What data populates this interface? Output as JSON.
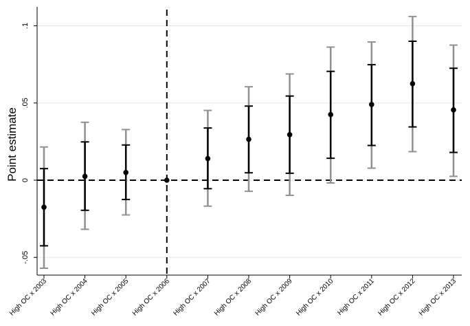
{
  "chart_data": {
    "type": "scatter",
    "ylabel": "Point estimate",
    "xlabel": "",
    "ylim": [
      -0.062,
      0.11
    ],
    "yticks": [
      -0.05,
      0,
      0.05,
      0.1
    ],
    "ytick_labels": [
      "-.05",
      "0",
      ".05",
      ".1"
    ],
    "grid": true,
    "reference_lines": {
      "horizontal_y": 0,
      "vertical_category": "High OC x 2006"
    },
    "categories": [
      "High OC x 2003",
      "High OC x 2004",
      "High OC x 2005",
      "High OC x 2006",
      "High OC x 2007",
      "High OC x 2008",
      "High OC x 2009",
      "High OC x 2010",
      "High OC x 2011",
      "High OC x 2012",
      "High OC x 2013"
    ],
    "point_estimate": [
      -0.0175,
      0.0025,
      0.005,
      0.0,
      0.014,
      0.0265,
      0.0295,
      0.0425,
      0.049,
      0.0625,
      0.0455
    ],
    "ci_inner_low": [
      -0.0425,
      -0.0195,
      -0.0125,
      0.0,
      -0.0055,
      0.0048,
      0.0045,
      0.0142,
      0.0225,
      0.0345,
      0.018
    ],
    "ci_inner_high": [
      0.0075,
      0.0248,
      0.0228,
      0.0,
      0.0338,
      0.048,
      0.0545,
      0.0705,
      0.0748,
      0.09,
      0.0725
    ],
    "ci_outer_low": [
      -0.057,
      -0.0318,
      -0.0225,
      0.0,
      -0.0168,
      -0.0072,
      -0.0098,
      -0.0018,
      0.0078,
      0.0185,
      0.0025
    ],
    "ci_outer_high": [
      0.0215,
      0.0375,
      0.0328,
      0.0,
      0.0452,
      0.0605,
      0.0688,
      0.0862,
      0.0895,
      0.106,
      0.0875
    ],
    "colors": {
      "estimate": "#000000",
      "outer_ci": "#909090",
      "grid": "#e6e6e6",
      "axis": "#000000"
    }
  }
}
